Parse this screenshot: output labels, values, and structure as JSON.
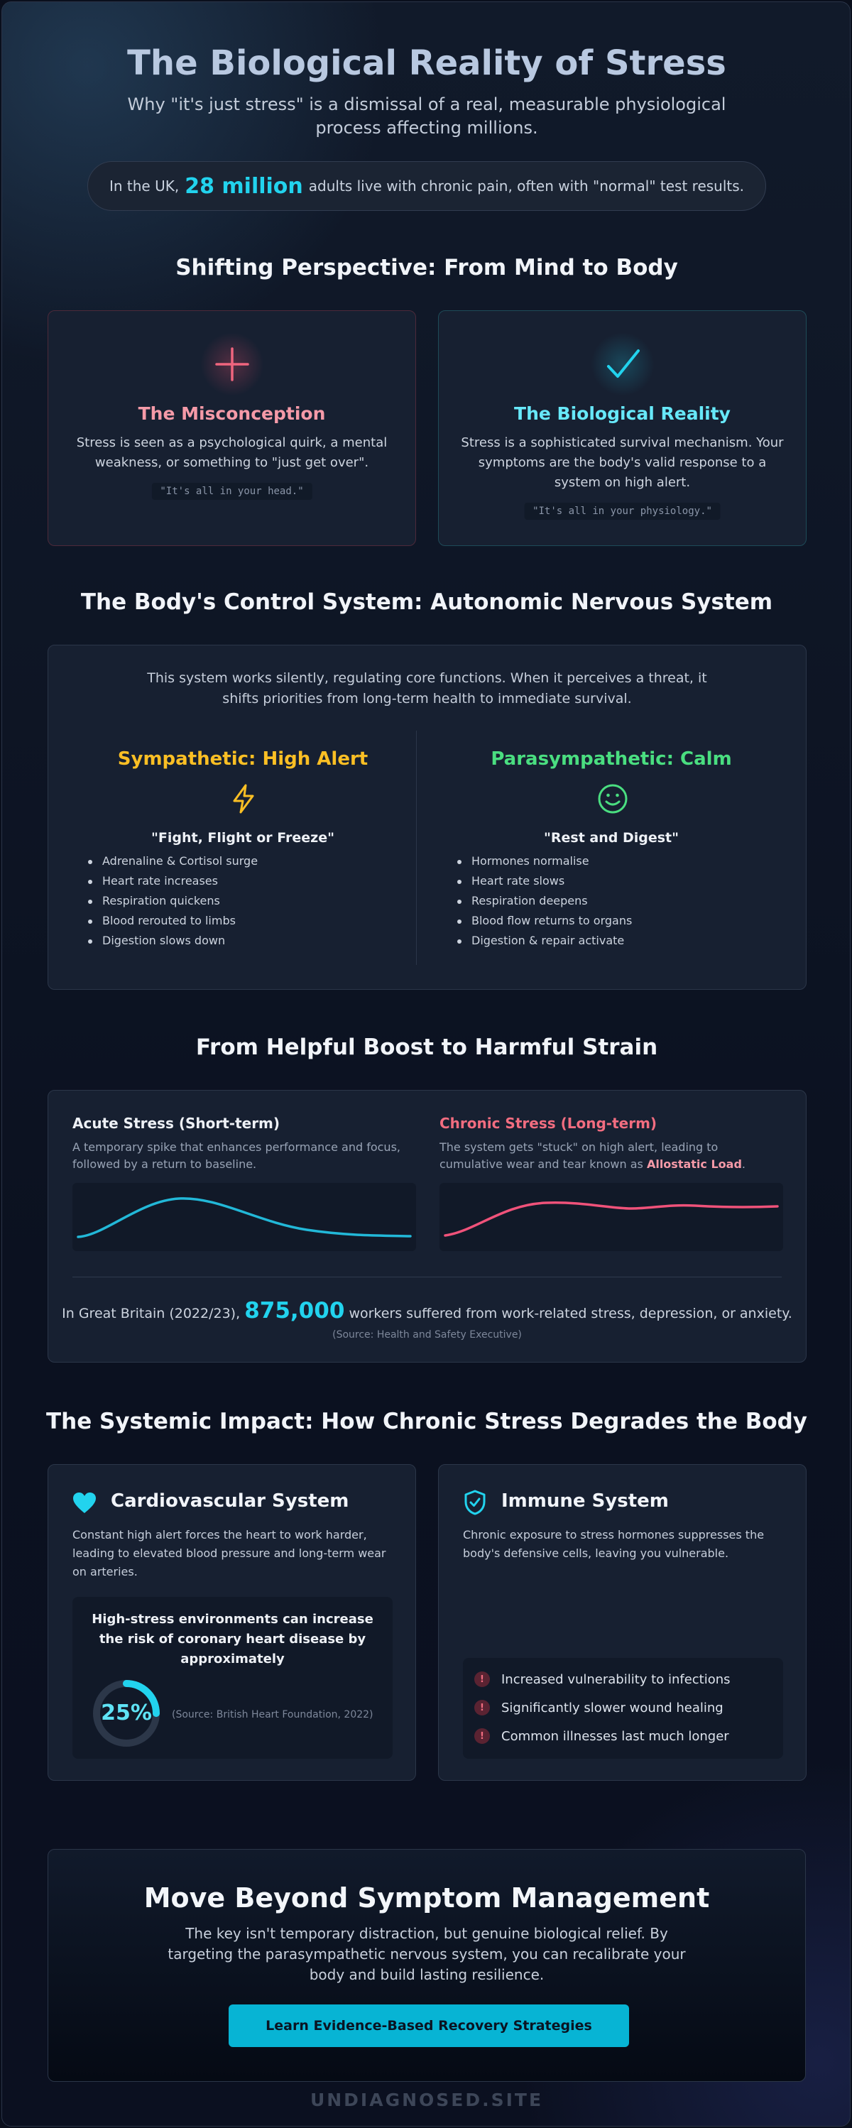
{
  "header": {
    "title": "The Biological Reality of Stress",
    "subtitle": "Why \"it's just stress\" is a dismissal of a real, measurable physiological process affecting millions.",
    "stat_pre": "In the UK,",
    "stat_value": "28 million",
    "stat_post": "adults live with chronic pain, often with \"normal\" test results."
  },
  "perspective": {
    "heading": "Shifting Perspective: From Mind to Body",
    "misconception": {
      "icon": "plus-icon",
      "title": "The Misconception",
      "text": "Stress is seen as a psychological quirk, a mental weakness, or something to \"just get over\".",
      "quote": "\"It's all in your head.\"",
      "color": "#f59aa8"
    },
    "reality": {
      "icon": "check-icon",
      "title": "The Biological Reality",
      "text": "Stress is a sophisticated survival mechanism. Your symptoms are the body's valid response to a system on high alert.",
      "quote": "\"It's all in your physiology.\"",
      "color": "#67e8f9"
    }
  },
  "ans": {
    "heading": "The Body's Control System: Autonomic Nervous System",
    "intro": "This system works silently, regulating core functions. When it perceives a threat, it shifts priorities from long-term health to immediate survival.",
    "sympathetic": {
      "title": "Sympathetic: High Alert",
      "icon": "lightning-icon",
      "subtitle": "\"Fight, Flight or Freeze\"",
      "items": [
        "Adrenaline & Cortisol surge",
        "Heart rate increases",
        "Respiration quickens",
        "Blood rerouted to limbs",
        "Digestion slows down"
      ],
      "color": "#fbbf24"
    },
    "parasympathetic": {
      "title": "Parasympathetic: Calm",
      "icon": "smile-icon",
      "subtitle": "\"Rest and Digest\"",
      "items": [
        "Hormones normalise",
        "Heart rate slows",
        "Respiration deepens",
        "Blood flow returns to organs",
        "Digestion & repair activate"
      ],
      "color": "#4ade80"
    }
  },
  "strain": {
    "heading": "From Helpful Boost to Harmful Strain",
    "acute": {
      "title": "Acute Stress (Short-term)",
      "desc": "A temporary spike that enhances performance and focus, followed by a return to baseline.",
      "color": "#22b8d8"
    },
    "chronic": {
      "title": "Chronic Stress (Long-term)",
      "desc_pre": "The system gets \"stuck\" on high alert, leading to cumulative wear and tear known as",
      "desc_highlight": "Allostatic Load",
      "desc_post": ".",
      "color": "#f0527a"
    },
    "stat_pre": "In Great Britain (2022/23),",
    "stat_value": "875,000",
    "stat_post": "workers suffered from work-related stress, depression, or anxiety.",
    "source": "(Source: Health and Safety Executive)"
  },
  "impact": {
    "heading": "The Systemic Impact: How Chronic Stress Degrades the Body",
    "cardio": {
      "icon": "heart-icon",
      "title": "Cardiovascular System",
      "desc": "Constant high alert forces the heart to work harder, leading to elevated blood pressure and long-term wear on arteries.",
      "risk_text": "High-stress environments can increase the risk of coronary heart disease by approximately",
      "percent_label": "25%",
      "percent_value": 0.25,
      "source": "(Source: British Heart Foundation, 2022)"
    },
    "immune": {
      "icon": "shield-check-icon",
      "title": "Immune System",
      "desc": "Chronic exposure to stress hormones suppresses the body's defensive cells, leaving you vulnerable.",
      "items": [
        "Increased vulnerability to infections",
        "Significantly slower wound healing",
        "Common illnesses last much longer"
      ],
      "item_icon": "!"
    }
  },
  "cta": {
    "title": "Move Beyond Symptom Management",
    "desc": "The key isn't temporary distraction, but genuine biological relief. By targeting the parasympathetic nervous system, you can recalibrate your body and build lasting resilience.",
    "button": "Learn Evidence-Based Recovery Strategies"
  },
  "footer": "UNDIAGNOSED.SITE"
}
